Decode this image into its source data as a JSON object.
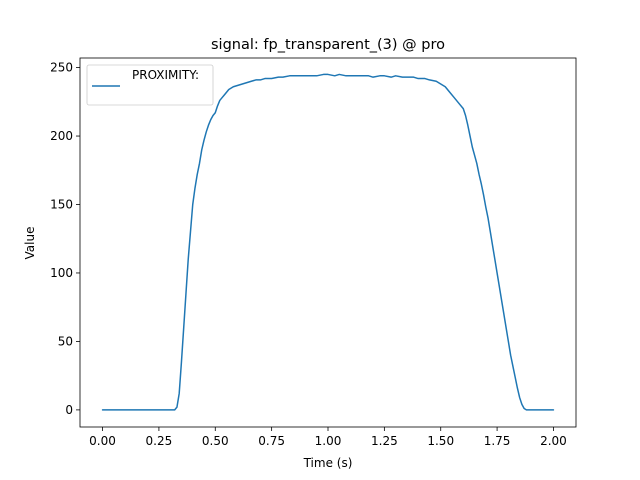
{
  "chart_data": {
    "type": "line",
    "title": "signal: fp_transparent_(3) @ pro",
    "xlabel": "Time (s)",
    "ylabel": "Value",
    "xlim": [
      -0.1,
      2.1
    ],
    "ylim": [
      -12.5,
      257
    ],
    "xticks": [
      0.0,
      0.25,
      0.5,
      0.75,
      1.0,
      1.25,
      1.5,
      1.75,
      2.0
    ],
    "xtick_labels": [
      "0.00",
      "0.25",
      "0.50",
      "0.75",
      "1.00",
      "1.25",
      "1.50",
      "1.75",
      "2.00"
    ],
    "yticks": [
      0,
      50,
      100,
      150,
      200,
      250
    ],
    "ytick_labels": [
      "0",
      "50",
      "100",
      "150",
      "200",
      "250"
    ],
    "grid": false,
    "legend_position": "top-left",
    "series": [
      {
        "name": "PROXIMITY:",
        "color": "#1f77b4",
        "x": [
          0.0,
          0.1,
          0.2,
          0.3,
          0.32,
          0.33,
          0.34,
          0.35,
          0.36,
          0.37,
          0.38,
          0.39,
          0.4,
          0.41,
          0.42,
          0.43,
          0.44,
          0.45,
          0.46,
          0.47,
          0.48,
          0.49,
          0.5,
          0.51,
          0.52,
          0.53,
          0.54,
          0.55,
          0.56,
          0.58,
          0.6,
          0.62,
          0.64,
          0.66,
          0.68,
          0.7,
          0.72,
          0.75,
          0.78,
          0.8,
          0.83,
          0.85,
          0.88,
          0.9,
          0.93,
          0.95,
          0.98,
          1.0,
          1.03,
          1.05,
          1.08,
          1.1,
          1.13,
          1.15,
          1.18,
          1.2,
          1.23,
          1.25,
          1.28,
          1.3,
          1.33,
          1.35,
          1.38,
          1.4,
          1.43,
          1.45,
          1.48,
          1.5,
          1.52,
          1.54,
          1.56,
          1.58,
          1.6,
          1.61,
          1.62,
          1.63,
          1.64,
          1.65,
          1.66,
          1.67,
          1.68,
          1.69,
          1.7,
          1.71,
          1.72,
          1.73,
          1.74,
          1.75,
          1.76,
          1.77,
          1.78,
          1.79,
          1.8,
          1.81,
          1.82,
          1.83,
          1.84,
          1.85,
          1.86,
          1.87,
          1.88,
          1.89,
          1.9,
          1.95,
          2.0
        ],
        "y": [
          0,
          0,
          0,
          0,
          0,
          2,
          12,
          35,
          60,
          85,
          110,
          130,
          150,
          162,
          172,
          180,
          190,
          197,
          203,
          208,
          212,
          215,
          217,
          222,
          226,
          228,
          230,
          232,
          234,
          236,
          237,
          238,
          239,
          240,
          241,
          241,
          242,
          242,
          243,
          243,
          244,
          244,
          244,
          244,
          244,
          244,
          245,
          245,
          244,
          245,
          244,
          244,
          244,
          244,
          244,
          243,
          244,
          244,
          243,
          244,
          243,
          243,
          243,
          242,
          242,
          241,
          240,
          238,
          236,
          232,
          228,
          224,
          220,
          215,
          208,
          200,
          192,
          186,
          180,
          172,
          165,
          157,
          148,
          140,
          130,
          120,
          110,
          100,
          90,
          80,
          70,
          60,
          50,
          40,
          32,
          24,
          16,
          9,
          4,
          1,
          0,
          0,
          0,
          0,
          0
        ]
      }
    ]
  }
}
